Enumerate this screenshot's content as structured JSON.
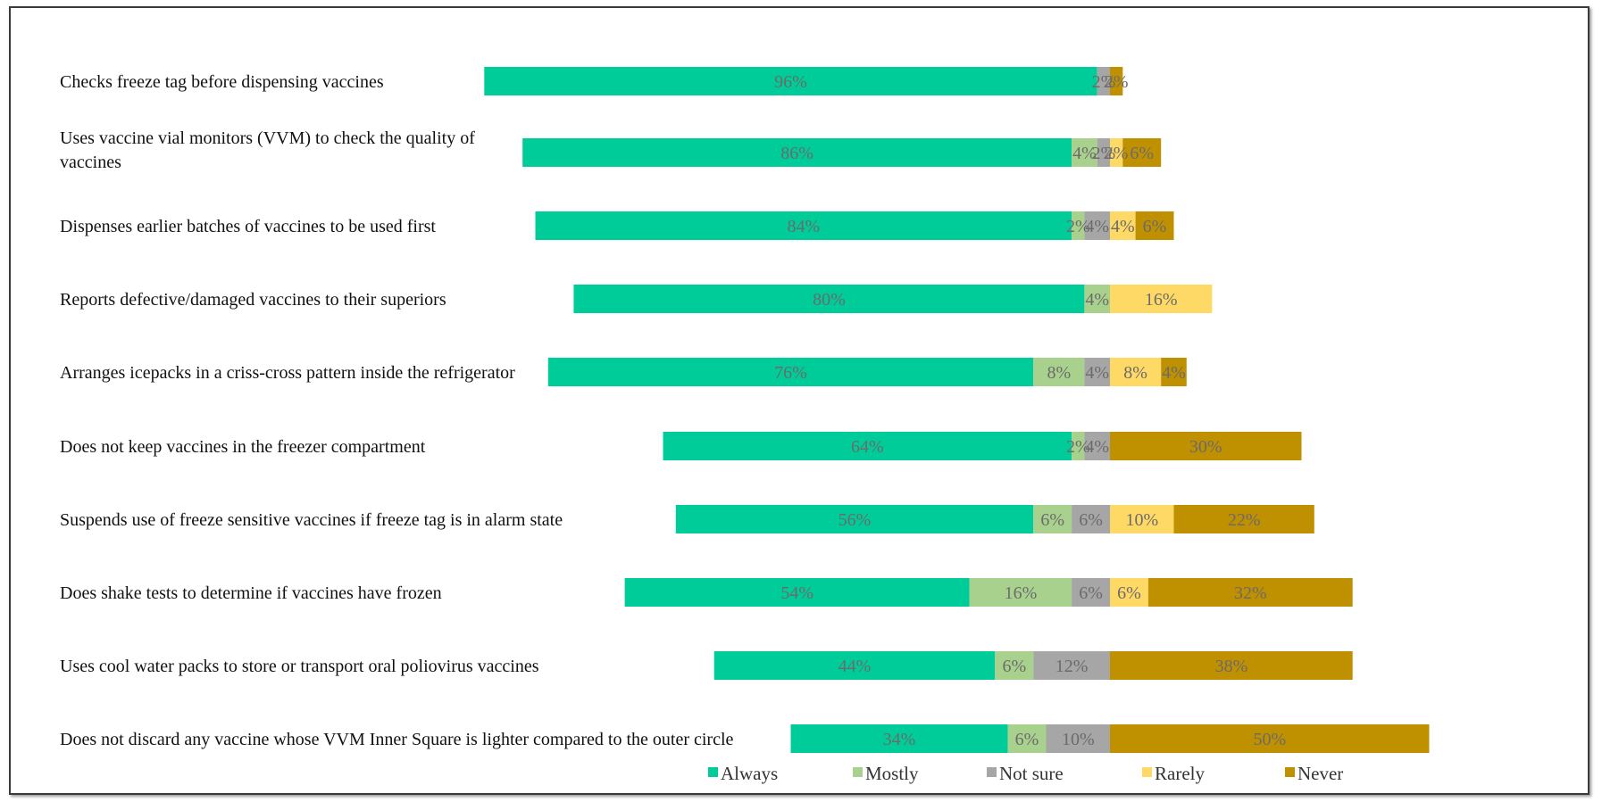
{
  "chart_data": {
    "type": "bar",
    "orientation": "horizontal",
    "stacked": true,
    "diverging": true,
    "grid": false,
    "legend_position": "bottom",
    "value_unit": "%",
    "categories": [
      "Checks freeze tag before dispensing vaccines",
      "Uses vaccine vial monitors (VVM) to check the quality  of vaccines",
      "Dispenses earlier batches of vaccines to be used first",
      "Reports defective/damaged vaccines to their superiors",
      "Arranges icepacks in a criss-cross pattern inside  the refrigerator",
      "Does not keep vaccines in the freezer compartment",
      "Suspends use of freeze sensitive vaccines if freeze tag is  in  alarm state",
      "Does shake tests to determine if vaccines have frozen",
      "Uses cool water packs to store or transport oral poliovirus  vaccines",
      "Does not discard any vaccine whose VVM Inner Square is lighter  compared to the outer circle"
    ],
    "series": [
      {
        "name": "Always",
        "color": "#00CC99",
        "values": [
          96,
          86,
          84,
          80,
          76,
          64,
          56,
          54,
          44,
          34
        ]
      },
      {
        "name": "Mostly",
        "color": "#A9D18E",
        "values": [
          0,
          4,
          2,
          4,
          8,
          2,
          6,
          16,
          6,
          6
        ]
      },
      {
        "name": "Not sure",
        "color": "#A6A6A6",
        "values": [
          2,
          2,
          4,
          0,
          4,
          4,
          6,
          6,
          12,
          10
        ]
      },
      {
        "name": "Rarely",
        "color": "#FFD966",
        "values": [
          0,
          2,
          4,
          16,
          8,
          0,
          10,
          6,
          0,
          0
        ]
      },
      {
        "name": "Never",
        "color": "#BF9000",
        "values": [
          2,
          6,
          6,
          0,
          4,
          30,
          22,
          32,
          38,
          50
        ]
      }
    ]
  }
}
